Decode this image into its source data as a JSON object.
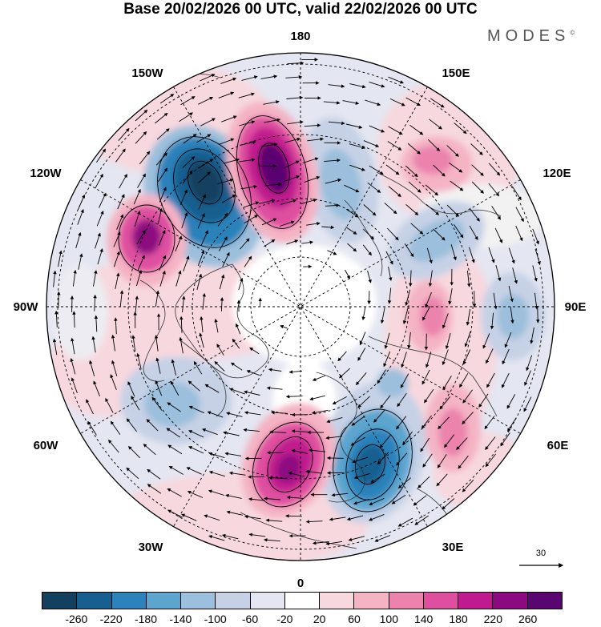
{
  "header": {
    "title": "Base 20/02/2026 00 UTC, valid 22/02/2026 00 UTC",
    "brand": "MODES",
    "brand_mark": "©"
  },
  "map": {
    "projection": "north-polar-stereographic",
    "longitude_labels": {
      "top": "180",
      "bottom": "0",
      "left": "90W",
      "right": "90E",
      "upper_left_outer": "150W",
      "upper_left_inner": "120W",
      "upper_right_outer": "150E",
      "upper_right_inner": "120E",
      "lower_left_upper": "60W",
      "lower_left_lower": "30W",
      "lower_right_upper": "60E",
      "lower_right_lower": "30E"
    },
    "reference_vector_label": "30"
  },
  "colorbar": {
    "colors": [
      "#12405e",
      "#165f8f",
      "#2c82ba",
      "#5ba5cf",
      "#9bbfdc",
      "#c6d1e6",
      "#e4e6f1",
      "#ffffff",
      "#f7d8de",
      "#f4b4c4",
      "#eb83ad",
      "#df4fa0",
      "#c01b8e",
      "#8b0a80",
      "#5a0670"
    ],
    "labels": [
      "-260",
      "-220",
      "-180",
      "-140",
      "-100",
      "-60",
      "-20",
      "20",
      "60",
      "100",
      "140",
      "180",
      "220",
      "260"
    ]
  }
}
